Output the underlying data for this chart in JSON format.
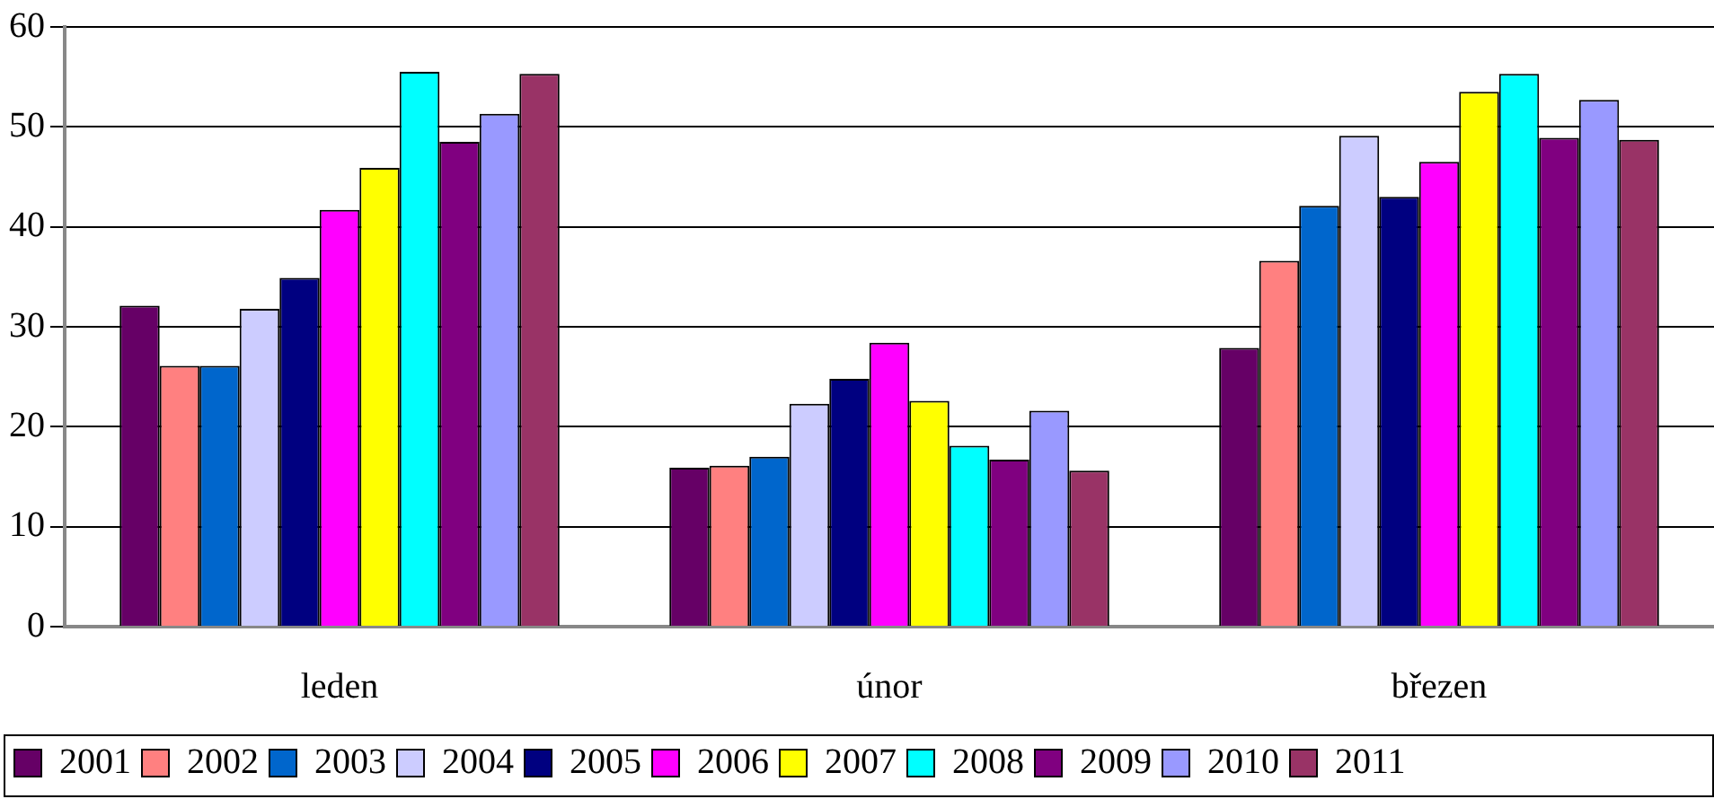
{
  "chart_data": {
    "type": "bar",
    "categories": [
      "leden",
      "únor",
      "březen"
    ],
    "series": [
      {
        "name": "2001",
        "color": "#660066",
        "values": [
          32.1,
          15.9,
          27.9
        ]
      },
      {
        "name": "2002",
        "color": "#ff8080",
        "values": [
          26.1,
          16.1,
          36.6
        ]
      },
      {
        "name": "2003",
        "color": "#0066cc",
        "values": [
          26.1,
          17.0,
          42.1
        ]
      },
      {
        "name": "2004",
        "color": "#ccccff",
        "values": [
          31.8,
          22.3,
          49.1
        ]
      },
      {
        "name": "2005",
        "color": "#000080",
        "values": [
          34.9,
          24.8,
          43.0
        ]
      },
      {
        "name": "2006",
        "color": "#ff00ff",
        "values": [
          41.7,
          28.4,
          46.5
        ]
      },
      {
        "name": "2007",
        "color": "#ffff00",
        "values": [
          45.9,
          22.6,
          53.5
        ]
      },
      {
        "name": "2008",
        "color": "#00ffff",
        "values": [
          55.5,
          18.1,
          55.3
        ]
      },
      {
        "name": "2009",
        "color": "#800080",
        "values": [
          48.5,
          16.7,
          48.9
        ]
      },
      {
        "name": "2010",
        "color": "#9999ff",
        "values": [
          51.3,
          21.6,
          52.7
        ]
      },
      {
        "name": "2011",
        "color": "#993366",
        "values": [
          55.3,
          15.6,
          48.7
        ]
      }
    ],
    "ylim": [
      0,
      60
    ],
    "yticks": [
      0,
      10,
      20,
      30,
      40,
      50,
      60
    ],
    "grid": "y",
    "legend": "bottom"
  }
}
